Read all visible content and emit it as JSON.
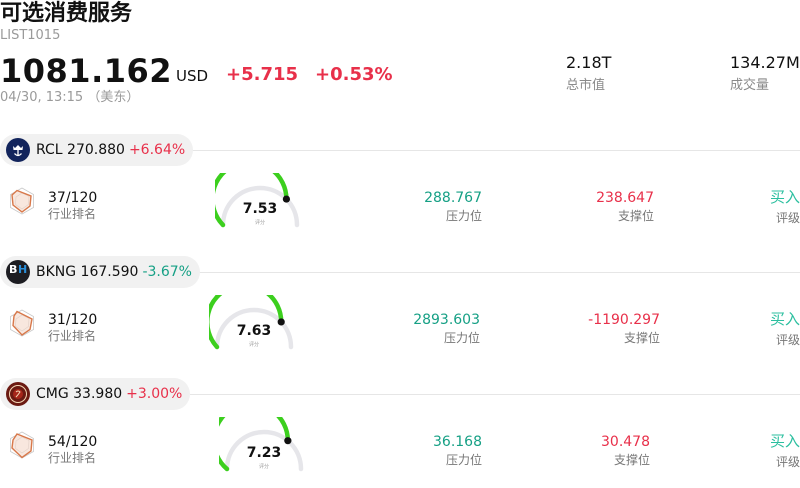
{
  "header": {
    "title": "可选消费服务",
    "code": "LIST1015",
    "price": "1081.162",
    "currency": "USD",
    "change": "+5.715",
    "change_pct": "+0.53%",
    "timestamp": "04/30, 13:15 （美东）"
  },
  "stats": {
    "market_cap_value": "2.18T",
    "market_cap_label": "总市值",
    "volume_value": "134.27M",
    "volume_label": "成交量"
  },
  "labels": {
    "rank": "行业排名",
    "score": "评分",
    "resistance": "压力位",
    "support": "支撑位",
    "rating": "评级"
  },
  "colors": {
    "up": "#e8304a",
    "down": "#16a085",
    "gauge_fill": "#3ccf1e",
    "gauge_track": "#e6e6ea",
    "rating": "#2bbf9f",
    "radar": "#d8784a"
  },
  "stocks": [
    {
      "ticker": "RCL",
      "price": "270.880",
      "change": "+6.64%",
      "direction": "up",
      "logo": "crown-anchor-icon",
      "rank": "37/120",
      "score": 7.53,
      "score_text": "7.53",
      "resistance": "288.767",
      "support": "238.647",
      "rating": "买入"
    },
    {
      "ticker": "BKNG",
      "price": "167.590",
      "change": "-3.67%",
      "direction": "down",
      "logo": "bh-letter-icon",
      "rank": "31/120",
      "score": 7.63,
      "score_text": "7.63",
      "resistance": "2893.603",
      "support": "-1190.297",
      "rating": "买入"
    },
    {
      "ticker": "CMG",
      "price": "33.980",
      "change": "+3.00%",
      "direction": "up",
      "logo": "chipotle-seal-icon",
      "rank": "54/120",
      "score": 7.23,
      "score_text": "7.23",
      "resistance": "36.168",
      "support": "30.478",
      "rating": "买入"
    }
  ]
}
